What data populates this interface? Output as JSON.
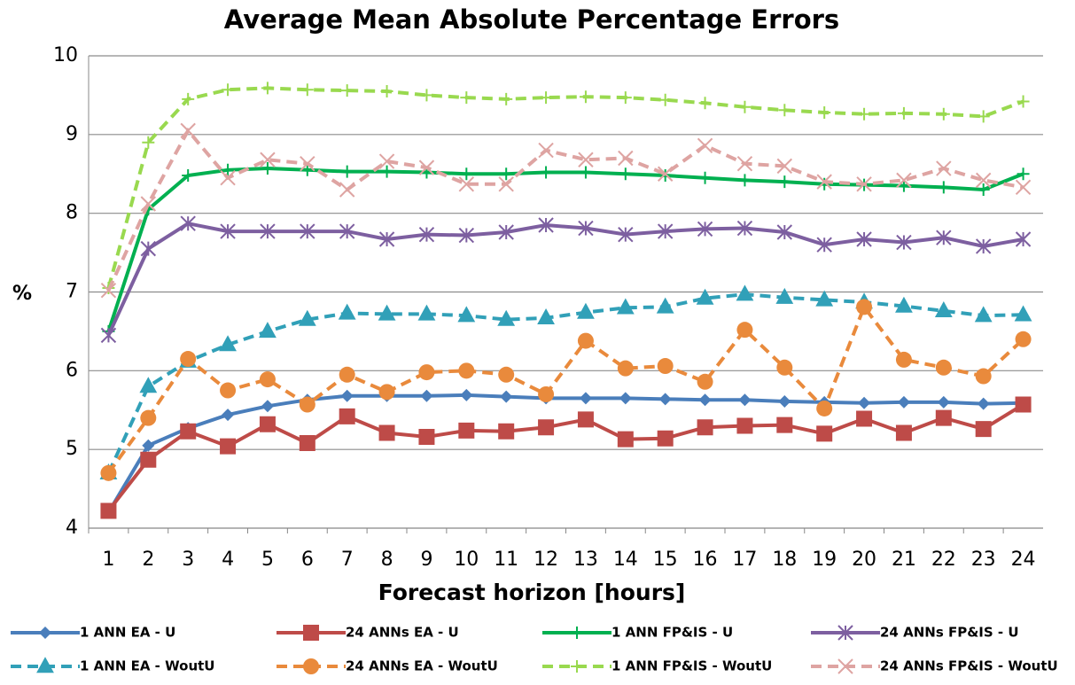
{
  "chart_data": {
    "type": "line",
    "title": "Average Mean Absolute Percentage Errors",
    "x_label": "Forecast horizon [hours]",
    "y_label": "%",
    "categories": [
      "1",
      "2",
      "3",
      "4",
      "5",
      "6",
      "7",
      "8",
      "9",
      "10",
      "11",
      "12",
      "13",
      "14",
      "15",
      "16",
      "17",
      "18",
      "19",
      "20",
      "21",
      "22",
      "23",
      "24"
    ],
    "ylim": [
      4,
      10
    ],
    "yticks": [
      4,
      5,
      6,
      7,
      8,
      9,
      10
    ],
    "grid": true,
    "series": [
      {
        "name": "1 ANN EA - U",
        "color": "#4a7ebb",
        "dash": false,
        "marker": "diamond",
        "values": [
          4.2,
          5.05,
          5.27,
          5.44,
          5.55,
          5.63,
          5.68,
          5.68,
          5.68,
          5.69,
          5.67,
          5.65,
          5.65,
          5.65,
          5.64,
          5.63,
          5.63,
          5.61,
          5.6,
          5.59,
          5.6,
          5.6,
          5.58,
          5.59
        ]
      },
      {
        "name": "24 ANNs EA - U",
        "color": "#be4b48",
        "dash": false,
        "marker": "square",
        "values": [
          4.22,
          4.87,
          5.23,
          5.04,
          5.32,
          5.08,
          5.42,
          5.21,
          5.16,
          5.24,
          5.23,
          5.28,
          5.38,
          5.13,
          5.14,
          5.28,
          5.3,
          5.31,
          5.2,
          5.39,
          5.21,
          5.4,
          5.26,
          5.57
        ]
      },
      {
        "name": "1 ANN FP&IS - U",
        "color": "#00b050",
        "dash": false,
        "marker": "plus",
        "values": [
          6.5,
          8.05,
          8.48,
          8.55,
          8.57,
          8.55,
          8.53,
          8.53,
          8.52,
          8.5,
          8.5,
          8.52,
          8.52,
          8.5,
          8.48,
          8.45,
          8.42,
          8.4,
          8.37,
          8.36,
          8.35,
          8.33,
          8.3,
          8.5
        ]
      },
      {
        "name": "24 ANNs FP&IS - U",
        "color": "#7d5fa0",
        "dash": false,
        "marker": "star",
        "values": [
          6.45,
          7.55,
          7.87,
          7.77,
          7.77,
          7.77,
          7.77,
          7.67,
          7.73,
          7.72,
          7.76,
          7.85,
          7.81,
          7.73,
          7.77,
          7.8,
          7.81,
          7.76,
          7.6,
          7.67,
          7.63,
          7.69,
          7.58,
          7.67
        ]
      },
      {
        "name": "1 ANN EA - WoutU",
        "color": "#31a0b8",
        "dash": true,
        "marker": "triangle",
        "values": [
          4.7,
          5.8,
          6.12,
          6.33,
          6.5,
          6.65,
          6.73,
          6.72,
          6.72,
          6.7,
          6.65,
          6.67,
          6.74,
          6.8,
          6.81,
          6.92,
          6.97,
          6.93,
          6.9,
          6.87,
          6.82,
          6.76,
          6.7,
          6.71
        ]
      },
      {
        "name": "24 ANNs EA - WoutU",
        "color": "#e98a3c",
        "dash": true,
        "marker": "circle",
        "values": [
          4.7,
          5.4,
          6.15,
          5.75,
          5.89,
          5.57,
          5.95,
          5.73,
          5.98,
          6.0,
          5.95,
          5.7,
          6.38,
          6.03,
          6.06,
          5.86,
          6.52,
          6.04,
          5.52,
          6.81,
          6.14,
          6.04,
          5.93,
          6.4
        ]
      },
      {
        "name": "1 ANN FP&IS - WoutU",
        "color": "#99d94f",
        "dash": true,
        "marker": "plus",
        "values": [
          7.05,
          8.9,
          9.45,
          9.57,
          9.59,
          9.57,
          9.56,
          9.55,
          9.5,
          9.47,
          9.45,
          9.47,
          9.48,
          9.47,
          9.44,
          9.4,
          9.35,
          9.31,
          9.28,
          9.26,
          9.27,
          9.26,
          9.23,
          9.42
        ]
      },
      {
        "name": "24 ANNs FP&IS - WoutU",
        "color": "#dea4a2",
        "dash": true,
        "marker": "cross",
        "values": [
          7.02,
          8.12,
          9.05,
          8.45,
          8.68,
          8.63,
          8.3,
          8.66,
          8.58,
          8.37,
          8.37,
          8.8,
          8.68,
          8.7,
          8.5,
          8.86,
          8.63,
          8.6,
          8.4,
          8.37,
          8.42,
          8.57,
          8.42,
          8.33
        ]
      }
    ]
  }
}
